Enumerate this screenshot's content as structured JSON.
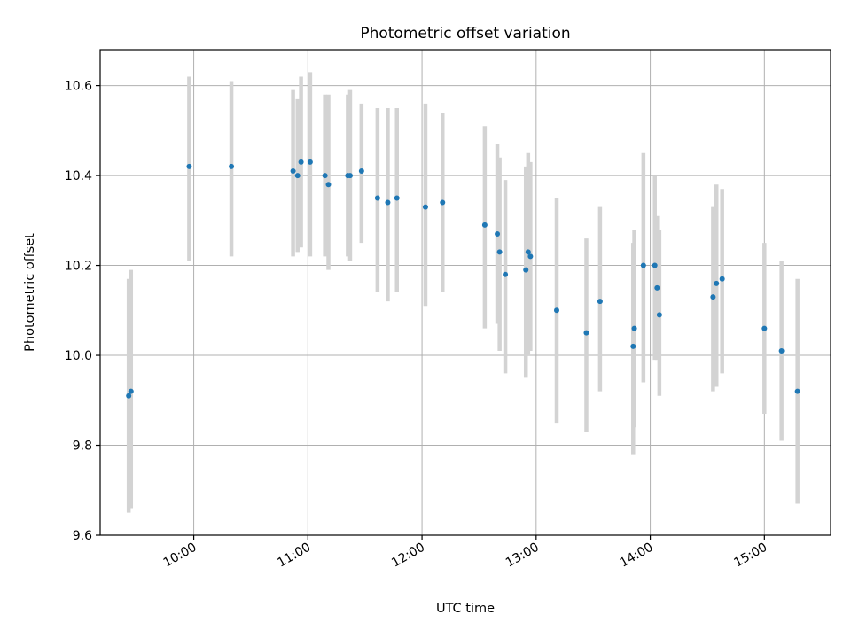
{
  "chart_data": {
    "type": "scatter",
    "title": "Photometric offset variation",
    "xlabel": "UTC time",
    "ylabel": "Photometric offset",
    "x_unit": "hours UTC (decimal)",
    "xlim": [
      9.18,
      15.58
    ],
    "ylim": [
      9.6,
      10.68
    ],
    "grid": true,
    "x_ticks": [
      {
        "value": 10,
        "label": "10:00"
      },
      {
        "value": 11,
        "label": "11:00"
      },
      {
        "value": 12,
        "label": "12:00"
      },
      {
        "value": 13,
        "label": "13:00"
      },
      {
        "value": 14,
        "label": "14:00"
      },
      {
        "value": 15,
        "label": "15:00"
      }
    ],
    "y_ticks": [
      {
        "value": 9.6,
        "label": "9.6"
      },
      {
        "value": 9.8,
        "label": "9.8"
      },
      {
        "value": 10.0,
        "label": "10.0"
      },
      {
        "value": 10.2,
        "label": "10.2"
      },
      {
        "value": 10.4,
        "label": "10.4"
      },
      {
        "value": 10.6,
        "label": "10.6"
      }
    ],
    "series": [
      {
        "name": "offset",
        "marker_color": "#1f77b4",
        "errorbar_color": "#d3d3d3",
        "points": [
          {
            "x": 9.43,
            "y": 9.91,
            "lo": 9.65,
            "hi": 10.17
          },
          {
            "x": 9.45,
            "y": 9.92,
            "lo": 9.66,
            "hi": 10.19
          },
          {
            "x": 9.96,
            "y": 10.42,
            "lo": 10.21,
            "hi": 10.62
          },
          {
            "x": 10.33,
            "y": 10.42,
            "lo": 10.22,
            "hi": 10.61
          },
          {
            "x": 10.87,
            "y": 10.41,
            "lo": 10.22,
            "hi": 10.59
          },
          {
            "x": 10.91,
            "y": 10.4,
            "lo": 10.23,
            "hi": 10.57
          },
          {
            "x": 10.94,
            "y": 10.43,
            "lo": 10.24,
            "hi": 10.62
          },
          {
            "x": 11.02,
            "y": 10.43,
            "lo": 10.22,
            "hi": 10.63
          },
          {
            "x": 11.15,
            "y": 10.4,
            "lo": 10.22,
            "hi": 10.58
          },
          {
            "x": 11.18,
            "y": 10.38,
            "lo": 10.19,
            "hi": 10.58
          },
          {
            "x": 11.35,
            "y": 10.4,
            "lo": 10.22,
            "hi": 10.58
          },
          {
            "x": 11.37,
            "y": 10.4,
            "lo": 10.21,
            "hi": 10.59
          },
          {
            "x": 11.47,
            "y": 10.41,
            "lo": 10.25,
            "hi": 10.56
          },
          {
            "x": 11.61,
            "y": 10.35,
            "lo": 10.14,
            "hi": 10.55
          },
          {
            "x": 11.7,
            "y": 10.34,
            "lo": 10.12,
            "hi": 10.55
          },
          {
            "x": 11.78,
            "y": 10.35,
            "lo": 10.14,
            "hi": 10.55
          },
          {
            "x": 12.03,
            "y": 10.33,
            "lo": 10.11,
            "hi": 10.56
          },
          {
            "x": 12.18,
            "y": 10.34,
            "lo": 10.14,
            "hi": 10.54
          },
          {
            "x": 12.55,
            "y": 10.29,
            "lo": 10.06,
            "hi": 10.51
          },
          {
            "x": 12.66,
            "y": 10.27,
            "lo": 10.07,
            "hi": 10.47
          },
          {
            "x": 12.68,
            "y": 10.23,
            "lo": 10.01,
            "hi": 10.44
          },
          {
            "x": 12.73,
            "y": 10.18,
            "lo": 9.96,
            "hi": 10.39
          },
          {
            "x": 12.91,
            "y": 10.19,
            "lo": 9.95,
            "hi": 10.42
          },
          {
            "x": 12.93,
            "y": 10.23,
            "lo": 10.0,
            "hi": 10.45
          },
          {
            "x": 12.95,
            "y": 10.22,
            "lo": 10.01,
            "hi": 10.43
          },
          {
            "x": 13.18,
            "y": 10.1,
            "lo": 9.85,
            "hi": 10.35
          },
          {
            "x": 13.44,
            "y": 10.05,
            "lo": 9.83,
            "hi": 10.26
          },
          {
            "x": 13.56,
            "y": 10.12,
            "lo": 9.92,
            "hi": 10.33
          },
          {
            "x": 13.85,
            "y": 10.02,
            "lo": 9.78,
            "hi": 10.25
          },
          {
            "x": 13.86,
            "y": 10.06,
            "lo": 9.84,
            "hi": 10.28
          },
          {
            "x": 13.94,
            "y": 10.2,
            "lo": 9.94,
            "hi": 10.45
          },
          {
            "x": 14.04,
            "y": 10.2,
            "lo": 9.99,
            "hi": 10.4
          },
          {
            "x": 14.06,
            "y": 10.15,
            "lo": 9.99,
            "hi": 10.31
          },
          {
            "x": 14.08,
            "y": 10.09,
            "lo": 9.91,
            "hi": 10.28
          },
          {
            "x": 14.55,
            "y": 10.13,
            "lo": 9.92,
            "hi": 10.33
          },
          {
            "x": 14.58,
            "y": 10.16,
            "lo": 9.93,
            "hi": 10.38
          },
          {
            "x": 14.63,
            "y": 10.17,
            "lo": 9.96,
            "hi": 10.37
          },
          {
            "x": 15.0,
            "y": 10.06,
            "lo": 9.87,
            "hi": 10.25
          },
          {
            "x": 15.15,
            "y": 10.01,
            "lo": 9.81,
            "hi": 10.21
          },
          {
            "x": 15.29,
            "y": 9.92,
            "lo": 9.67,
            "hi": 10.17
          }
        ]
      }
    ]
  }
}
